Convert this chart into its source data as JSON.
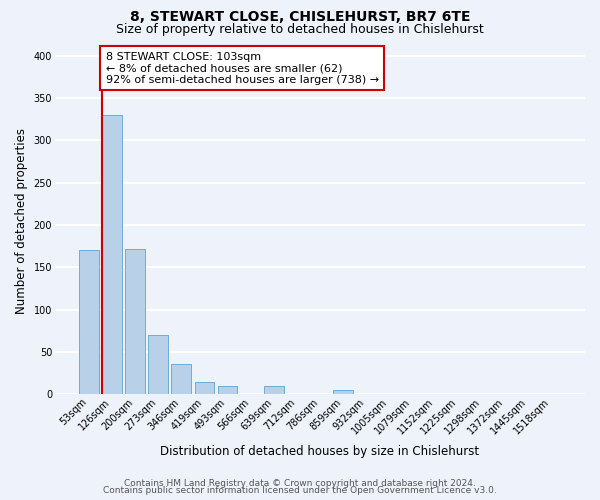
{
  "title": "8, STEWART CLOSE, CHISLEHURST, BR7 6TE",
  "subtitle": "Size of property relative to detached houses in Chislehurst",
  "xlabel": "Distribution of detached houses by size in Chislehurst",
  "ylabel": "Number of detached properties",
  "bar_labels": [
    "53sqm",
    "126sqm",
    "200sqm",
    "273sqm",
    "346sqm",
    "419sqm",
    "493sqm",
    "566sqm",
    "639sqm",
    "712sqm",
    "786sqm",
    "859sqm",
    "932sqm",
    "1005sqm",
    "1079sqm",
    "1152sqm",
    "1225sqm",
    "1298sqm",
    "1372sqm",
    "1445sqm",
    "1518sqm"
  ],
  "bar_values": [
    170,
    330,
    172,
    70,
    36,
    14,
    10,
    0,
    9,
    0,
    0,
    5,
    0,
    0,
    0,
    0,
    0,
    0,
    0,
    0,
    0
  ],
  "bar_color": "#b8d0e8",
  "bar_edge_color": "#6aaed6",
  "marker_line_color": "#cc0000",
  "annotation_box_color": "#ffffff",
  "annotation_box_edge": "#cc0000",
  "ylim": [
    0,
    410
  ],
  "yticks": [
    0,
    50,
    100,
    150,
    200,
    250,
    300,
    350,
    400
  ],
  "footer_line1": "Contains HM Land Registry data © Crown copyright and database right 2024.",
  "footer_line2": "Contains public sector information licensed under the Open Government Licence v3.0.",
  "bg_color": "#eef2fa",
  "grid_color": "#ffffff",
  "title_fontsize": 10,
  "subtitle_fontsize": 9,
  "axis_label_fontsize": 8.5,
  "tick_fontsize": 7,
  "annotation_fontsize": 8,
  "footer_fontsize": 6.5
}
